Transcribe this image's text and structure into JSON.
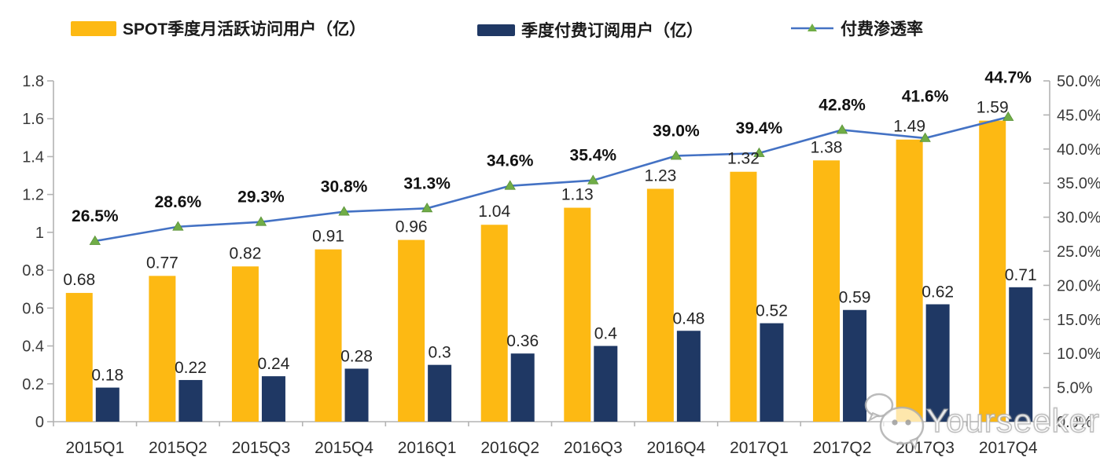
{
  "legend": [
    {
      "label": "SPOT季度月活跃访问用户（亿）",
      "type": "bar",
      "color": "#fdb913"
    },
    {
      "label": "季度付费订阅用户（亿）",
      "type": "bar",
      "color": "#1f3864"
    },
    {
      "label": "付费渗透率",
      "type": "line",
      "color": "#4472c4",
      "marker_color": "#70ad47"
    }
  ],
  "watermark": {
    "text": "Yourseeker",
    "icon": "wechat-icon"
  },
  "colors": {
    "mau_bar": "#fdb913",
    "subs_bar": "#1f3864",
    "line": "#4472c4",
    "marker": "#70ad47",
    "axis": "#b3b3b3",
    "tick_label": "#3a3a3a",
    "value_label": "#262626",
    "pct_label": "#111111"
  },
  "chart_data": {
    "type": "bar",
    "subtype": "combo-bar-line-dual-axis",
    "categories": [
      "2015Q1",
      "2015Q2",
      "2015Q3",
      "2015Q4",
      "2016Q1",
      "2016Q2",
      "2016Q3",
      "2016Q4",
      "2017Q1",
      "2017Q2",
      "2017Q3",
      "2017Q4"
    ],
    "series": [
      {
        "name": "SPOT季度月活跃访问用户（亿）",
        "type": "bar",
        "axis": "left",
        "color": "#fdb913",
        "values": [
          0.68,
          0.77,
          0.82,
          0.91,
          0.96,
          1.04,
          1.13,
          1.23,
          1.32,
          1.38,
          1.49,
          1.59
        ],
        "labels": [
          "0.68",
          "0.77",
          "0.82",
          "0.91",
          "0.96",
          "1.04",
          "1.13",
          "1.23",
          "1.32",
          "1.38",
          "1.49",
          "1.59"
        ]
      },
      {
        "name": "季度付费订阅用户（亿）",
        "type": "bar",
        "axis": "left",
        "color": "#1f3864",
        "values": [
          0.18,
          0.22,
          0.24,
          0.28,
          0.3,
          0.36,
          0.4,
          0.48,
          0.52,
          0.59,
          0.62,
          0.71
        ],
        "labels": [
          "0.18",
          "0.22",
          "0.24",
          "0.28",
          "0.3",
          "0.36",
          "0.4",
          "0.48",
          "0.52",
          "0.59",
          "0.62",
          "0.71"
        ]
      },
      {
        "name": "付费渗透率",
        "type": "line",
        "axis": "right",
        "color": "#4472c4",
        "marker": "triangle",
        "marker_color": "#70ad47",
        "values": [
          26.5,
          28.6,
          29.3,
          30.8,
          31.3,
          34.6,
          35.4,
          39.0,
          39.4,
          42.8,
          41.6,
          44.7
        ],
        "labels": [
          "26.5%",
          "28.6%",
          "29.3%",
          "30.8%",
          "31.3%",
          "34.6%",
          "35.4%",
          "39.0%",
          "39.4%",
          "42.8%",
          "41.6%",
          "44.7%"
        ]
      }
    ],
    "left_axis": {
      "min": 0,
      "max": 1.8,
      "step": 0.2,
      "tick_labels": [
        "0",
        "0.2",
        "0.4",
        "0.6",
        "0.8",
        "1",
        "1.2",
        "1.4",
        "1.6",
        "1.8"
      ]
    },
    "right_axis": {
      "min": 0,
      "max": 50,
      "step": 5,
      "tick_labels": [
        "0.0%",
        "5.0%",
        "10.0%",
        "15.0%",
        "20.0%",
        "25.0%",
        "30.0%",
        "35.0%",
        "40.0%",
        "45.0%",
        "50.0%"
      ]
    },
    "grid": false,
    "legend_position": "top"
  }
}
